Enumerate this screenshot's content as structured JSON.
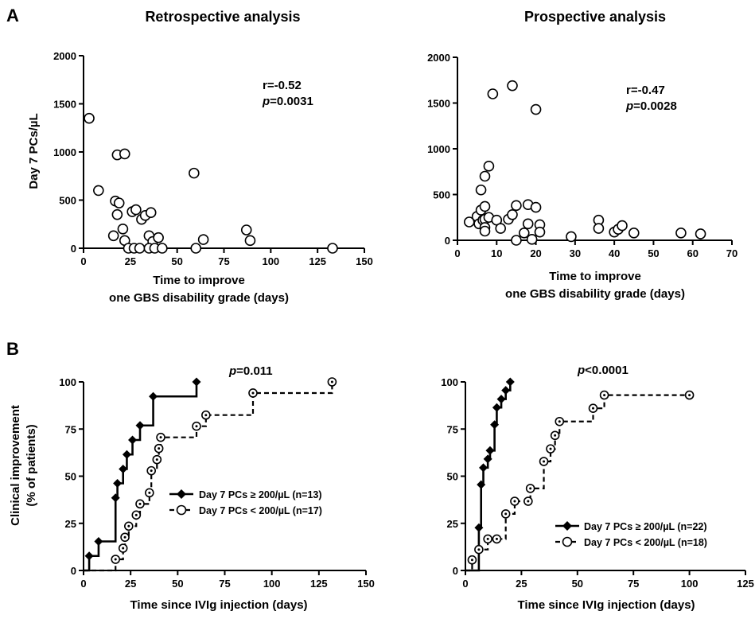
{
  "panels": {
    "a": "A",
    "b": "B"
  },
  "chart_data": [
    {
      "type": "scatter",
      "title": "Retrospective analysis",
      "xlabel": [
        "Time to improve",
        "one GBS disability grade (days)"
      ],
      "ylabel": "Day 7 PCs/µL",
      "xlim": [
        0,
        150
      ],
      "ylim": [
        0,
        2000
      ],
      "xticks": [
        0,
        25,
        50,
        75,
        100,
        125,
        150
      ],
      "yticks": [
        0,
        500,
        1000,
        1500,
        2000
      ],
      "stat_r": "r=-0.52",
      "stat_p_label": "p",
      "stat_p_value": "=0.0031",
      "points": [
        {
          "x": 3,
          "y": 1350
        },
        {
          "x": 8,
          "y": 600
        },
        {
          "x": 18,
          "y": 970
        },
        {
          "x": 22,
          "y": 980
        },
        {
          "x": 17,
          "y": 490
        },
        {
          "x": 19,
          "y": 470
        },
        {
          "x": 18,
          "y": 350
        },
        {
          "x": 16,
          "y": 130
        },
        {
          "x": 21,
          "y": 200
        },
        {
          "x": 22,
          "y": 80
        },
        {
          "x": 24,
          "y": 0
        },
        {
          "x": 26,
          "y": 380
        },
        {
          "x": 28,
          "y": 400
        },
        {
          "x": 27,
          "y": 0
        },
        {
          "x": 30,
          "y": 0
        },
        {
          "x": 31,
          "y": 300
        },
        {
          "x": 33,
          "y": 340
        },
        {
          "x": 35,
          "y": 130
        },
        {
          "x": 36,
          "y": 370
        },
        {
          "x": 37,
          "y": 70
        },
        {
          "x": 35,
          "y": 0
        },
        {
          "x": 38,
          "y": 0
        },
        {
          "x": 40,
          "y": 110
        },
        {
          "x": 42,
          "y": 0
        },
        {
          "x": 59,
          "y": 780
        },
        {
          "x": 60,
          "y": 0
        },
        {
          "x": 64,
          "y": 90
        },
        {
          "x": 87,
          "y": 190
        },
        {
          "x": 89,
          "y": 80
        },
        {
          "x": 133,
          "y": 0
        }
      ]
    },
    {
      "type": "scatter",
      "title": "Prospective analysis",
      "xlabel": [
        "Time to improve",
        "one GBS disability grade (days)"
      ],
      "ylabel": "",
      "xlim": [
        0,
        70
      ],
      "ylim": [
        0,
        2000
      ],
      "xticks": [
        0,
        10,
        20,
        30,
        40,
        50,
        60,
        70
      ],
      "yticks": [
        0,
        500,
        1000,
        1500,
        2000
      ],
      "stat_r": "r=-0.47",
      "stat_p_label": "p",
      "stat_p_value": "=0.0028",
      "points": [
        {
          "x": 3,
          "y": 200
        },
        {
          "x": 5,
          "y": 260
        },
        {
          "x": 5.5,
          "y": 180
        },
        {
          "x": 6,
          "y": 550
        },
        {
          "x": 6,
          "y": 330
        },
        {
          "x": 6.5,
          "y": 220
        },
        {
          "x": 7,
          "y": 700
        },
        {
          "x": 7,
          "y": 370
        },
        {
          "x": 7,
          "y": 230
        },
        {
          "x": 7,
          "y": 140
        },
        {
          "x": 7,
          "y": 100
        },
        {
          "x": 8,
          "y": 810
        },
        {
          "x": 8,
          "y": 250
        },
        {
          "x": 9,
          "y": 1600
        },
        {
          "x": 10,
          "y": 220
        },
        {
          "x": 11,
          "y": 130
        },
        {
          "x": 13,
          "y": 230
        },
        {
          "x": 14,
          "y": 1690
        },
        {
          "x": 14,
          "y": 280
        },
        {
          "x": 15,
          "y": 380
        },
        {
          "x": 15,
          "y": 0
        },
        {
          "x": 17,
          "y": 80
        },
        {
          "x": 18,
          "y": 390
        },
        {
          "x": 18,
          "y": 180
        },
        {
          "x": 19,
          "y": 10
        },
        {
          "x": 20,
          "y": 1430
        },
        {
          "x": 20,
          "y": 360
        },
        {
          "x": 21,
          "y": 170
        },
        {
          "x": 21,
          "y": 90
        },
        {
          "x": 29,
          "y": 40
        },
        {
          "x": 36,
          "y": 220
        },
        {
          "x": 36,
          "y": 130
        },
        {
          "x": 40,
          "y": 90
        },
        {
          "x": 41,
          "y": 120
        },
        {
          "x": 42,
          "y": 160
        },
        {
          "x": 45,
          "y": 80
        },
        {
          "x": 57,
          "y": 80
        },
        {
          "x": 62,
          "y": 70
        }
      ]
    },
    {
      "type": "line",
      "subtype": "step",
      "xlabel": "Time since IVIg injection (days)",
      "ylabel": [
        "Clinical improvement",
        "(% of patients)"
      ],
      "xlim": [
        0,
        150
      ],
      "ylim": [
        0,
        100
      ],
      "xticks": [
        0,
        25,
        50,
        75,
        100,
        125,
        150
      ],
      "yticks": [
        0,
        25,
        50,
        75,
        100
      ],
      "stat_p_label": "p",
      "stat_p_value": "=0.011",
      "series": [
        {
          "name": "Day 7 PCs ≥ 200/µL (n=13)",
          "style": "solid-diamond",
          "steps": [
            [
              0,
              0
            ],
            [
              3,
              7.7
            ],
            [
              8,
              15.4
            ],
            [
              17,
              38.5
            ],
            [
              18,
              46.2
            ],
            [
              21,
              53.8
            ],
            [
              23,
              61.5
            ],
            [
              26,
              69.2
            ],
            [
              30,
              76.9
            ],
            [
              37,
              92.3
            ],
            [
              60,
              100
            ]
          ]
        },
        {
          "name": "Day 7 PCs < 200/µL (n=17)",
          "style": "dashed-open",
          "steps": [
            [
              0,
              0
            ],
            [
              17,
              5.9
            ],
            [
              21,
              11.8
            ],
            [
              22,
              17.6
            ],
            [
              24,
              23.5
            ],
            [
              28,
              29.4
            ],
            [
              30,
              35.3
            ],
            [
              35,
              41.2
            ],
            [
              36,
              52.9
            ],
            [
              39,
              58.8
            ],
            [
              40,
              64.7
            ],
            [
              41,
              70.6
            ],
            [
              60,
              76.5
            ],
            [
              65,
              82.4
            ],
            [
              90,
              94.1
            ],
            [
              132,
              100
            ]
          ]
        }
      ]
    },
    {
      "type": "line",
      "subtype": "step",
      "xlabel": "Time since IVIg injection (days)",
      "ylabel": "",
      "xlim": [
        0,
        125
      ],
      "ylim": [
        0,
        100
      ],
      "xticks": [
        0,
        25,
        50,
        75,
        100,
        125
      ],
      "yticks": [
        0,
        25,
        50,
        75,
        100
      ],
      "stat_p_label": "p",
      "stat_p_value": "<0.0001",
      "series": [
        {
          "name": "Day 7 PCs ≥ 200/µL (n=22)",
          "style": "solid-diamond",
          "steps": [
            [
              0,
              0
            ],
            [
              6,
              22.7
            ],
            [
              7,
              45.5
            ],
            [
              8,
              54.5
            ],
            [
              10,
              59.1
            ],
            [
              11,
              63.6
            ],
            [
              13,
              77.3
            ],
            [
              14,
              86.4
            ],
            [
              16,
              90.9
            ],
            [
              18,
              95.5
            ],
            [
              20,
              100
            ]
          ]
        },
        {
          "name": "Day 7 PCs < 200/µL (n=18)",
          "style": "dashed-open",
          "steps": [
            [
              0,
              0
            ],
            [
              3,
              5.6
            ],
            [
              6,
              11.1
            ],
            [
              10,
              16.7
            ],
            [
              14,
              16.7
            ],
            [
              18,
              30
            ],
            [
              22,
              36.7
            ],
            [
              28,
              36.7
            ],
            [
              29,
              43.5
            ],
            [
              35,
              57.8
            ],
            [
              38,
              64.5
            ],
            [
              40,
              71.6
            ],
            [
              42,
              79
            ],
            [
              57,
              86
            ],
            [
              62,
              93
            ],
            [
              100,
              93
            ]
          ]
        }
      ]
    }
  ]
}
